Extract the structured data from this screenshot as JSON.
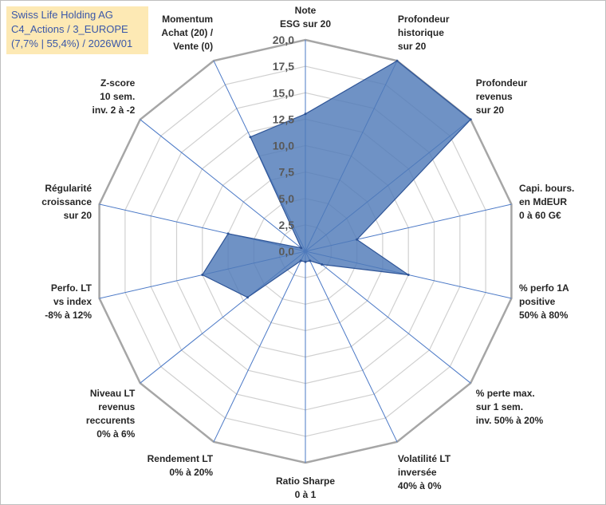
{
  "title": {
    "line1": "Swiss Life Holding AG",
    "line2": "C4_Actions / 3_EUROPE",
    "line3": "(7,7% | 55,4%) / 2026W01"
  },
  "colors": {
    "fill": "#4f7ab8",
    "stroke": "#2f5597",
    "grid": "#d0d0d0",
    "spoke": "#4a78c6",
    "title_bg": "#fde9b4"
  },
  "chart_data": {
    "type": "radar",
    "rmin": 0,
    "rmax": 20,
    "tick_step": 2.5,
    "tick_labels": [
      "0,0",
      "2,5",
      "5,0",
      "7,5",
      "10,0",
      "12,5",
      "15,0",
      "17,5",
      "20,0"
    ],
    "axes": [
      {
        "label": [
          "Note",
          "ESG sur 20"
        ],
        "value": 13.0
      },
      {
        "label": [
          "Profondeur",
          "historique",
          "sur 20"
        ],
        "value": 20.0
      },
      {
        "label": [
          "Profondeur",
          "revenus",
          "sur 20"
        ],
        "value": 20.0
      },
      {
        "label": [
          "Capi. bours.",
          "en MdEUR",
          "0 à 60 G€"
        ],
        "value": 5.0
      },
      {
        "label": [
          "% perfo 1A",
          "positive",
          "50% à 80%"
        ],
        "value": 10.0
      },
      {
        "label": [
          "% perte max.",
          "sur 1 sem.",
          "inv. 50% à 20%"
        ],
        "value": 2.0
      },
      {
        "label": [
          "Volatilité LT",
          "inversée",
          "40% à 0%"
        ],
        "value": 1.0
      },
      {
        "label": [
          "Ratio Sharpe",
          "0 à 1"
        ],
        "value": 1.0
      },
      {
        "label": [
          "Rendement LT",
          "0% à 20%"
        ],
        "value": 1.0
      },
      {
        "label": [
          "Niveau LT",
          "revenus",
          "reccurents",
          "0% à 6%"
        ],
        "value": 7.0
      },
      {
        "label": [
          "Perfo. LT",
          "vs index",
          "-8% à 12%"
        ],
        "value": 10.0
      },
      {
        "label": [
          "Régularité",
          "croissance",
          "sur 20"
        ],
        "value": 7.5
      },
      {
        "label": [
          "Z-score",
          "10 sem.",
          "inv. 2 à -2"
        ],
        "value": 0.5
      },
      {
        "label": [
          "Momentum",
          "Achat (20) /",
          "Vente (0)"
        ],
        "value": 12.0
      }
    ]
  }
}
